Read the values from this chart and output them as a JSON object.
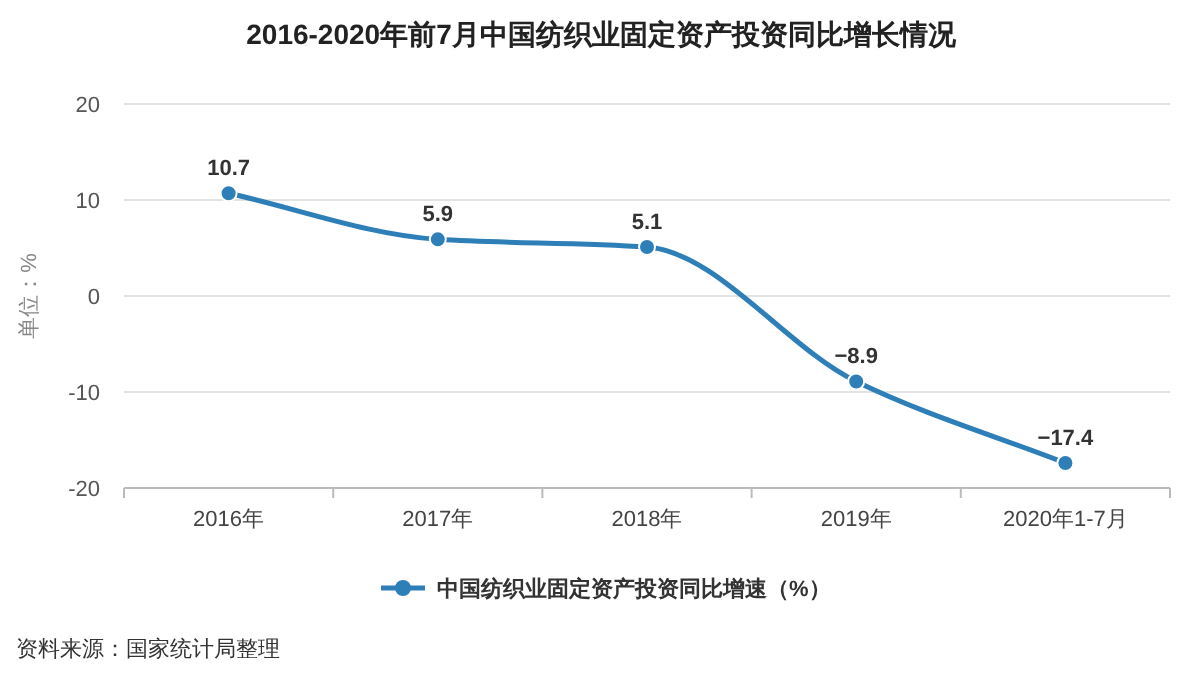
{
  "chart_data": {
    "type": "line",
    "title": "2016-2020年前7月中国纺织业固定资产投资同比增长情况",
    "ylabel": "单位：%",
    "categories": [
      "2016年",
      "2017年",
      "2018年",
      "2019年",
      "2020年1-7月"
    ],
    "series": [
      {
        "name": "中国纺织业固定资产投资同比增速（%）",
        "color": "#2e7fb8",
        "values": [
          10.7,
          5.9,
          5.1,
          -8.9,
          -17.4
        ]
      }
    ],
    "ylim": [
      -20,
      20
    ],
    "yticks": [
      -20,
      -10,
      0,
      10,
      20
    ],
    "grid": "y",
    "data_labels": true,
    "marker": "circle",
    "legend": "bottom",
    "annotations": [
      "资料来源：国家统计局整理"
    ]
  }
}
